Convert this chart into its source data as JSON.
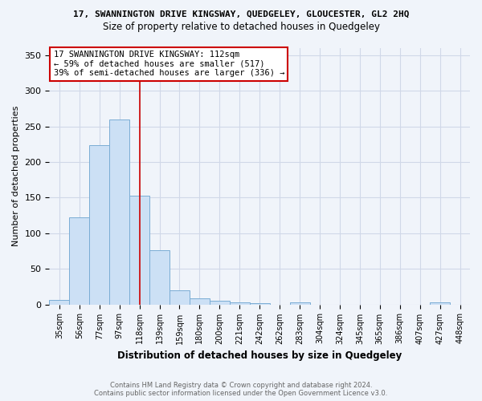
{
  "title_line1": "17, SWANNINGTON DRIVE KINGSWAY, QUEDGELEY, GLOUCESTER, GL2 2HQ",
  "title_line2": "Size of property relative to detached houses in Quedgeley",
  "xlabel": "Distribution of detached houses by size in Quedgeley",
  "ylabel": "Number of detached properties",
  "bins": [
    "35sqm",
    "56sqm",
    "77sqm",
    "97sqm",
    "118sqm",
    "139sqm",
    "159sqm",
    "180sqm",
    "200sqm",
    "221sqm",
    "242sqm",
    "262sqm",
    "283sqm",
    "304sqm",
    "324sqm",
    "345sqm",
    "365sqm",
    "386sqm",
    "407sqm",
    "427sqm",
    "448sqm"
  ],
  "values": [
    6,
    122,
    224,
    260,
    153,
    76,
    20,
    9,
    5,
    3,
    2,
    0,
    3,
    0,
    0,
    0,
    0,
    0,
    0,
    3,
    0
  ],
  "bar_color": "#cce0f5",
  "bar_edge_color": "#7aadd4",
  "vline_color": "#cc0000",
  "annotation_text": "17 SWANNINGTON DRIVE KINGSWAY: 112sqm\n← 59% of detached houses are smaller (517)\n39% of semi-detached houses are larger (336) →",
  "annotation_box_color": "white",
  "annotation_box_edge": "#cc0000",
  "ylim": [
    0,
    360
  ],
  "yticks": [
    0,
    50,
    100,
    150,
    200,
    250,
    300,
    350
  ],
  "footer_line1": "Contains HM Land Registry data © Crown copyright and database right 2024.",
  "footer_line2": "Contains public sector information licensed under the Open Government Licence v3.0.",
  "bg_color": "#f0f4fa",
  "grid_color": "#d0d8e8"
}
